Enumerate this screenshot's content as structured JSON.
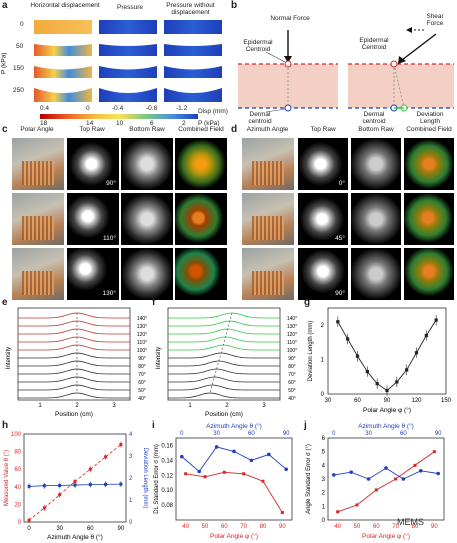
{
  "panel_labels": {
    "a": "a",
    "b": "b",
    "c": "c",
    "d": "d",
    "e": "e",
    "f": "f",
    "g": "g",
    "h": "h",
    "i": "i",
    "j": "j"
  },
  "panel_a": {
    "columns": [
      "Horizontal displacement",
      "Pressure",
      "Pressure without displacement"
    ],
    "ylabel": "P (kPa)",
    "row_labels": [
      "0",
      "50",
      "150",
      "250"
    ],
    "disp_ticks": [
      "0.4",
      "0",
      "-0.4",
      "-0.8",
      "-1.2"
    ],
    "disp_unit": "Disp (mm)",
    "p_ticks": [
      "18",
      "14",
      "10",
      "6",
      "2"
    ],
    "p_unit": "P (kPa)"
  },
  "panel_b": {
    "normal_force": "Normal Force",
    "shear_force": "Shear Force",
    "epidermal_centroid": "Epidermal Centroid",
    "dermal_centroid": "Dermal centroid",
    "deviation_length": "Deviation Length"
  },
  "panel_c": {
    "columns": [
      "Polar Angle",
      "Top Raw",
      "Bottom Raw",
      "Combined Field"
    ],
    "angles": [
      "90°",
      "110°",
      "130°"
    ]
  },
  "panel_d": {
    "columns": [
      "Azimuth Angle",
      "Top Raw",
      "Bottom Raw",
      "Combined Field"
    ],
    "angles": [
      "0°",
      "45°",
      "90°"
    ]
  },
  "panel_e": {
    "ylabel": "Intensity",
    "xlabel": "Position (cm)",
    "xticks": [
      "1",
      "2",
      "3"
    ],
    "curve_labels": [
      "140°",
      "130°",
      "120°",
      "110°",
      "100°",
      "90°",
      "80°",
      "70°",
      "60°",
      "50°",
      "40°"
    ],
    "colors": [
      "#c0392b",
      "#333333"
    ]
  },
  "panel_f": {
    "ylabel": "Intensity",
    "xlabel": "Position (cm)",
    "xticks": [
      "1",
      "2",
      "3"
    ],
    "curve_labels": [
      "140°",
      "130°",
      "120°",
      "110°",
      "100°",
      "90°",
      "80°",
      "70°",
      "60°",
      "50°",
      "40°"
    ],
    "colors": [
      "#2ecc40",
      "#333333"
    ]
  },
  "chart_data": [
    {
      "id": "g",
      "type": "line",
      "xlabel": "Polar Angle φ (°)",
      "ylabel": "Deviation Length (mm)",
      "x": [
        40,
        50,
        60,
        70,
        80,
        90,
        100,
        110,
        120,
        130,
        140
      ],
      "values": [
        2.1,
        1.6,
        1.1,
        0.65,
        0.3,
        0.1,
        0.35,
        0.7,
        1.2,
        1.7,
        2.15
      ],
      "xlim": [
        30,
        150
      ],
      "ylim": [
        0,
        2.5
      ],
      "xticks": [
        "30",
        "60",
        "90",
        "120",
        "150"
      ],
      "yticks": [
        "0",
        "1",
        "2"
      ]
    },
    {
      "id": "h",
      "type": "line",
      "xlabel": "Azimuth Angle θ (°)",
      "ylabel_left": "Measured Value θ (°)",
      "ylabel_right": "Deviation Length (mm)",
      "x": [
        0,
        15,
        30,
        45,
        60,
        75,
        90
      ],
      "series": [
        {
          "name": "Measured Value θ (°)",
          "axis": "left",
          "color": "#d62728",
          "values": [
            2,
            16,
            31,
            46,
            60,
            74,
            88
          ]
        },
        {
          "name": "Deviation Length (mm)",
          "axis": "right",
          "color": "#1f3fbf",
          "values": [
            1.62,
            1.65,
            1.66,
            1.68,
            1.7,
            1.71,
            1.72
          ]
        }
      ],
      "xlim": [
        -5,
        95
      ],
      "ylim_left": [
        0,
        100
      ],
      "ylim_right": [
        0,
        4
      ],
      "xticks": [
        "0",
        "30",
        "60",
        "90"
      ],
      "yticks_left": [
        "0",
        "20",
        "40",
        "60",
        "80",
        "100"
      ],
      "yticks_right": [
        "0",
        "1",
        "2",
        "3",
        "4"
      ]
    },
    {
      "id": "i",
      "type": "line",
      "xlabel_bottom": "Polar Angle φ (°)",
      "xlabel_top": "Azimuth Angle θ (°)",
      "ylabel": "DL Standard Error σ (mm)",
      "series": [
        {
          "name": "Polar",
          "color": "#d62728",
          "x": [
            40,
            50,
            60,
            70,
            80,
            90
          ],
          "values": [
            0.122,
            0.118,
            0.124,
            0.122,
            0.112,
            0.07
          ]
        },
        {
          "name": "Azimuth",
          "color": "#1f3fbf",
          "x": [
            0,
            15,
            30,
            45,
            60,
            75,
            90
          ],
          "values": [
            0.145,
            0.125,
            0.158,
            0.152,
            0.14,
            0.148,
            0.128
          ]
        }
      ],
      "xlim_bottom": [
        35,
        95
      ],
      "xlim_top": [
        -5,
        95
      ],
      "ylim": [
        0.06,
        0.17
      ],
      "xticks_bottom": [
        "40",
        "50",
        "60",
        "70",
        "80",
        "90"
      ],
      "xticks_top": [
        "0",
        "30",
        "60",
        "90"
      ],
      "yticks": [
        "0.08",
        "0.10",
        "0.12",
        "0.14",
        "0.16"
      ]
    },
    {
      "id": "j",
      "type": "line",
      "xlabel_bottom": "Polar Angle φ (°)",
      "xlabel_top": "Azimuth Angle θ (°)",
      "ylabel": "Angle Standard Error σ (°)",
      "series": [
        {
          "name": "Polar",
          "color": "#d62728",
          "x": [
            40,
            50,
            60,
            70,
            80,
            90
          ],
          "values": [
            0.6,
            1.1,
            2.2,
            3.0,
            4.0,
            5.0
          ]
        },
        {
          "name": "Azimuth",
          "color": "#1f3fbf",
          "x": [
            0,
            15,
            30,
            45,
            60,
            75,
            90
          ],
          "values": [
            3.3,
            3.5,
            3.0,
            3.8,
            3.0,
            3.6,
            3.4
          ]
        }
      ],
      "xlim_bottom": [
        35,
        95
      ],
      "xlim_top": [
        -5,
        95
      ],
      "ylim": [
        0,
        6
      ],
      "xticks_bottom": [
        "40",
        "50",
        "60",
        "70",
        "80",
        "90"
      ],
      "xticks_top": [
        "0",
        "30",
        "60",
        "90"
      ],
      "yticks": [
        "0",
        "1",
        "2",
        "3",
        "4",
        "5",
        "6"
      ]
    }
  ],
  "watermark": "MEMS"
}
